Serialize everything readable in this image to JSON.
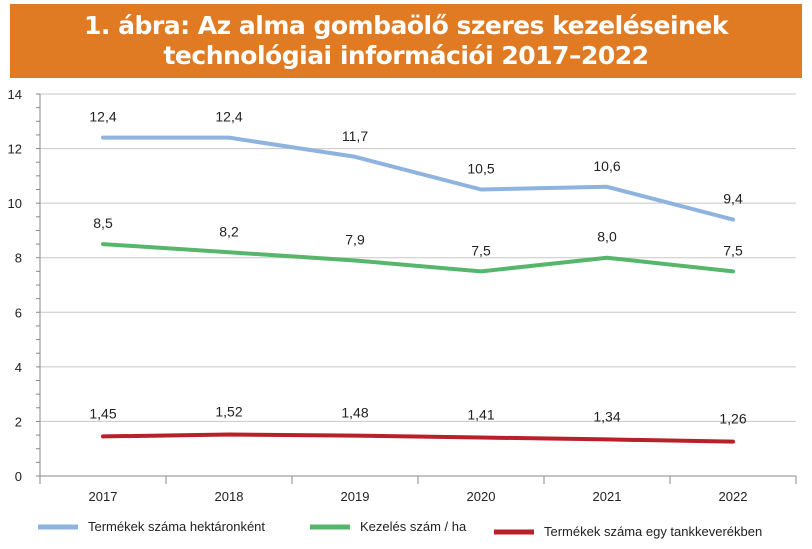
{
  "chart_data": {
    "type": "line",
    "title": "1. ábra: Az alma gombaölő szeres kezeléseinek technológiai információi 2017–2022",
    "categories": [
      "2017",
      "2018",
      "2019",
      "2020",
      "2021",
      "2022"
    ],
    "ylim": [
      0,
      14
    ],
    "yticks": [
      "0",
      "2",
      "4",
      "6",
      "8",
      "10",
      "12",
      "14"
    ],
    "grid": true,
    "legend_position": "bottom",
    "series": [
      {
        "name": "Termékek száma hektáronként",
        "color": "#8db3de",
        "values": [
          12.4,
          12.4,
          11.7,
          10.5,
          10.6,
          9.4
        ],
        "labels": [
          "12,4",
          "12,4",
          "11,7",
          "10,5",
          "10,6",
          "9,4"
        ]
      },
      {
        "name": "Kezelés szám / ha",
        "color": "#56b66b",
        "values": [
          8.5,
          8.2,
          7.9,
          7.5,
          8.0,
          7.5
        ],
        "labels": [
          "8,5",
          "8,2",
          "7,9",
          "7,5",
          "8,0",
          "7,5"
        ]
      },
      {
        "name": "Termékek száma egy tankkeverékben",
        "color": "#b8202a",
        "values": [
          1.45,
          1.52,
          1.48,
          1.41,
          1.34,
          1.26
        ],
        "labels": [
          "1,45",
          "1,52",
          "1,48",
          "1,41",
          "1,34",
          "1,26"
        ]
      }
    ]
  }
}
